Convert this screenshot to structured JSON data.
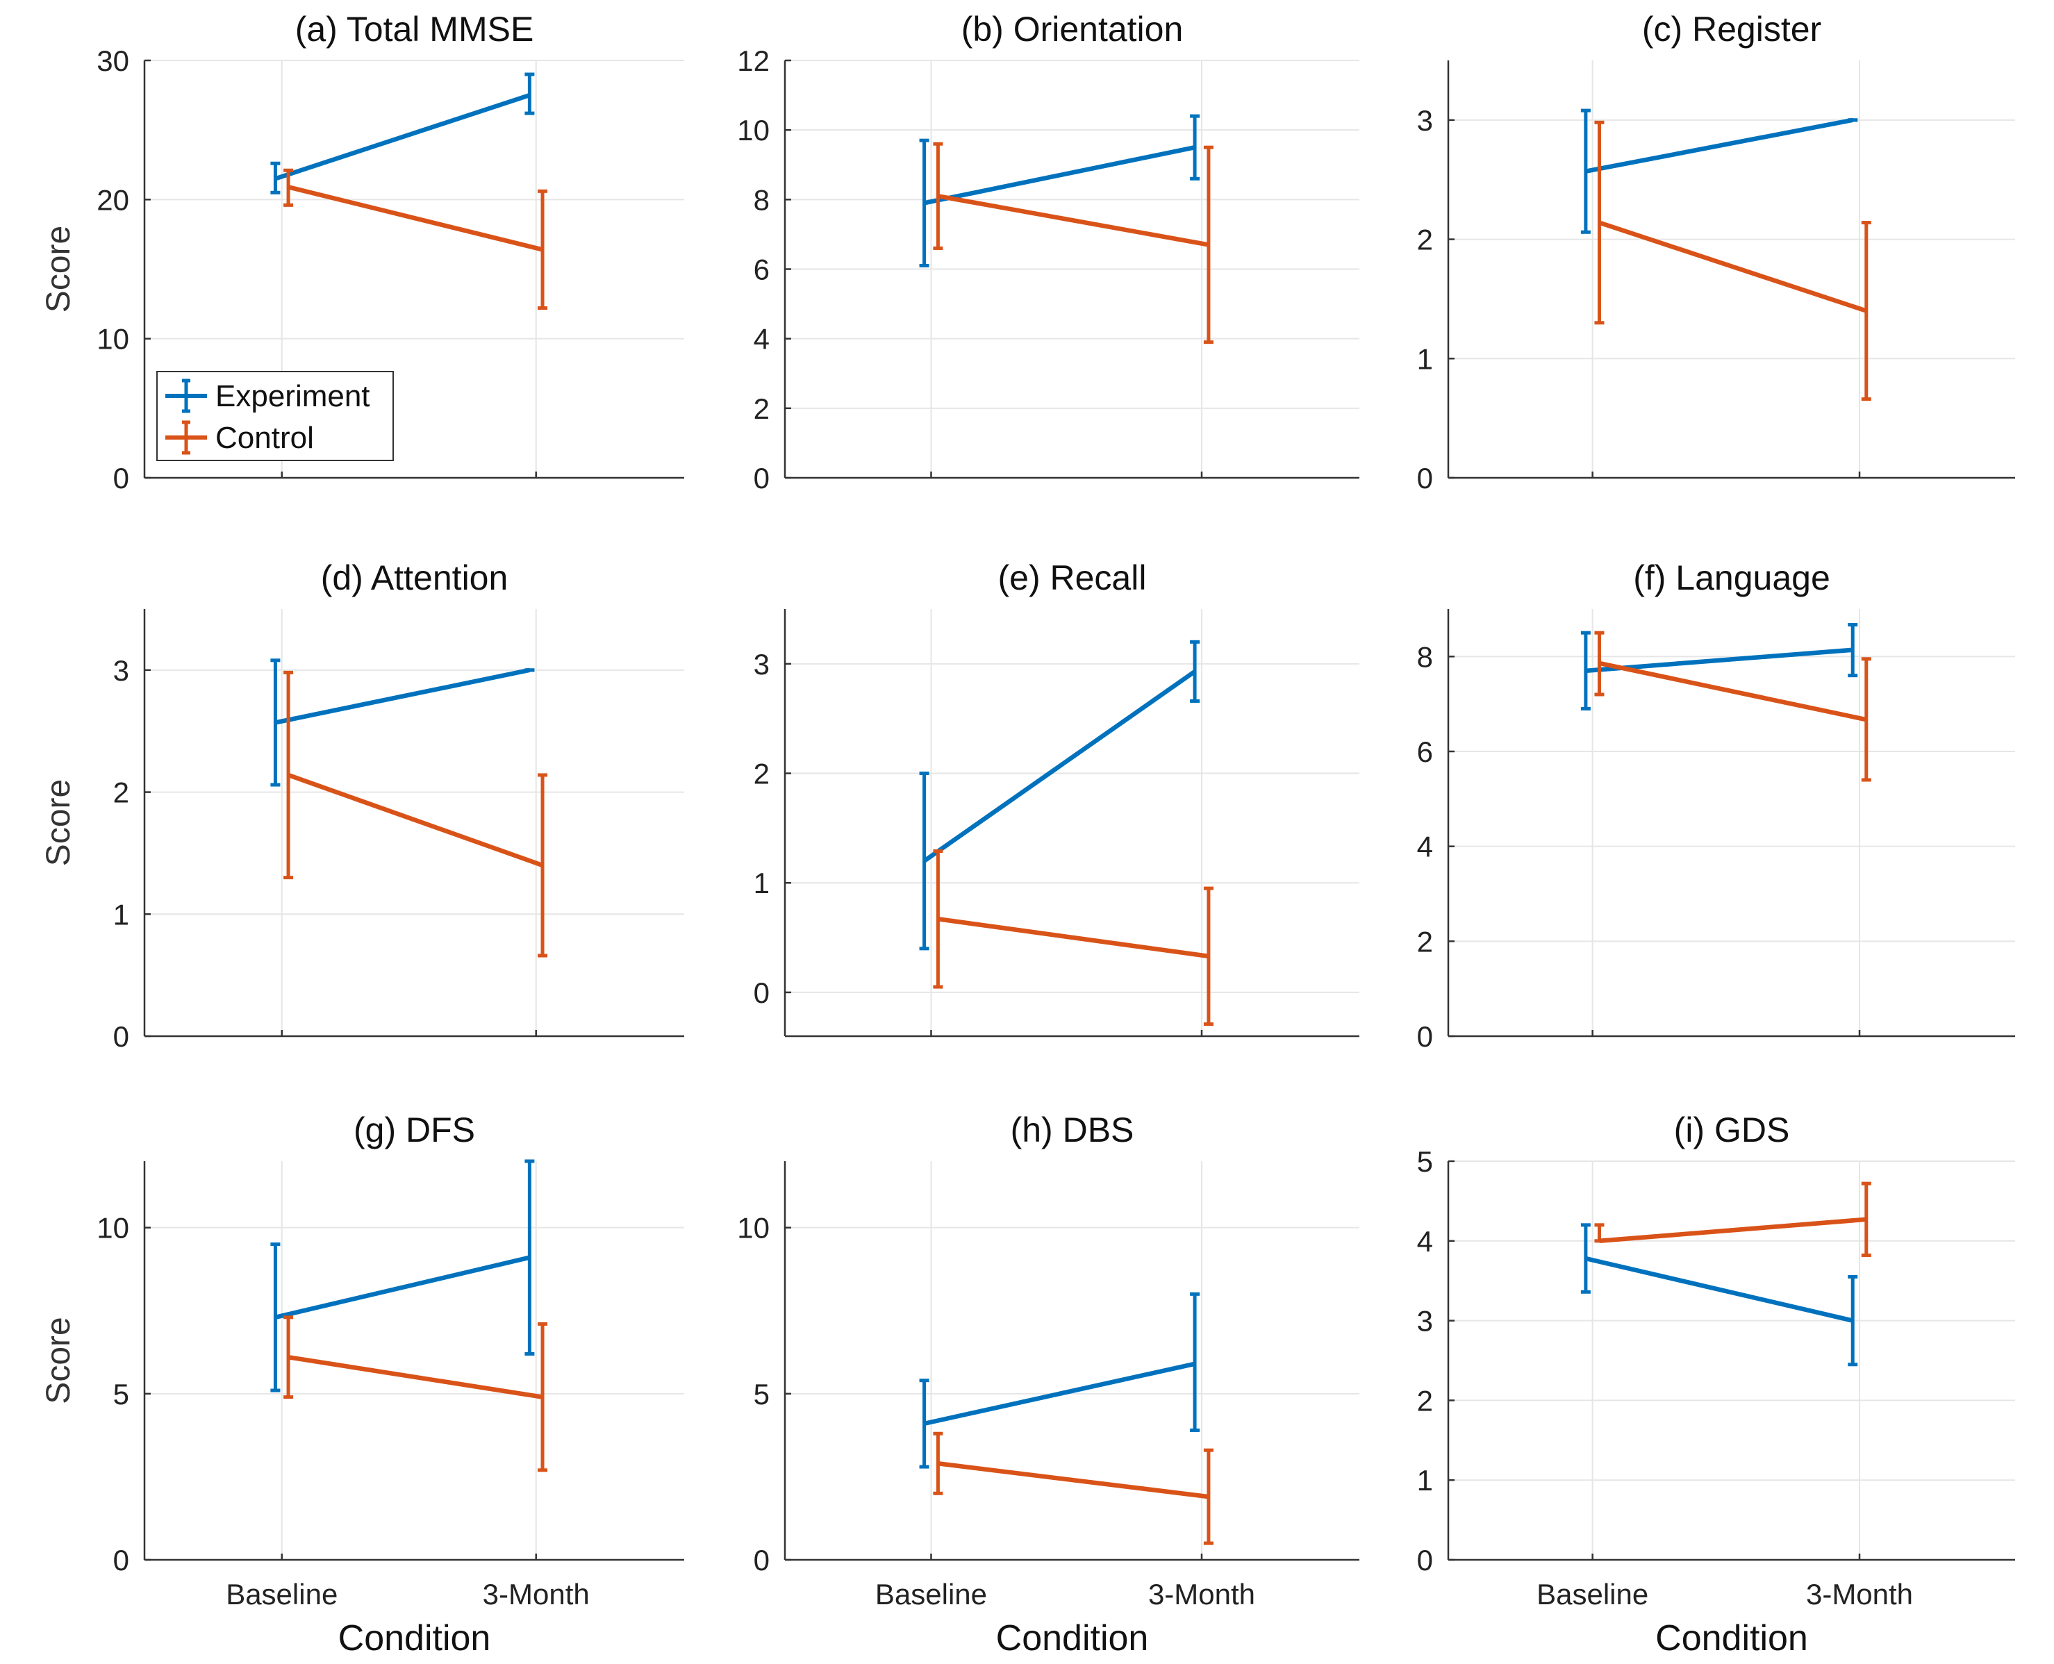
{
  "colors": {
    "Experiment": "#0072BD",
    "Control": "#D95319"
  },
  "legend": {
    "entries": [
      "Experiment",
      "Control"
    ]
  },
  "chart_data": [
    {
      "type": "line",
      "title": "(a) Total MMSE",
      "ylabel": "Score",
      "xlabel": "",
      "categories": [
        "Baseline",
        "3-Month"
      ],
      "ylim": [
        0,
        30
      ],
      "yticks": [
        0,
        10,
        20,
        30
      ],
      "show_xticklabels": false,
      "legend": "top-left",
      "series": [
        {
          "name": "Experiment",
          "values": [
            21.5,
            27.5
          ],
          "lower": [
            20.5,
            26.2
          ],
          "upper": [
            22.6,
            29.0
          ]
        },
        {
          "name": "Control",
          "values": [
            20.9,
            16.4
          ],
          "lower": [
            19.6,
            12.2
          ],
          "upper": [
            22.1,
            20.6
          ]
        }
      ]
    },
    {
      "type": "line",
      "title": "(b) Orientation",
      "ylabel": "",
      "xlabel": "",
      "categories": [
        "Baseline",
        "3-Month"
      ],
      "ylim": [
        0,
        12
      ],
      "yticks": [
        0,
        2,
        4,
        6,
        8,
        10,
        12
      ],
      "show_xticklabels": false,
      "series": [
        {
          "name": "Experiment",
          "values": [
            7.9,
            9.5
          ],
          "lower": [
            6.1,
            8.6
          ],
          "upper": [
            9.7,
            10.4
          ]
        },
        {
          "name": "Control",
          "values": [
            8.1,
            6.7
          ],
          "lower": [
            6.6,
            3.9
          ],
          "upper": [
            9.6,
            9.5
          ]
        }
      ]
    },
    {
      "type": "line",
      "title": "(c) Register",
      "ylabel": "",
      "xlabel": "",
      "categories": [
        "Baseline",
        "3-Month"
      ],
      "ylim": [
        0,
        3.5
      ],
      "yticks": [
        0,
        1,
        2,
        3
      ],
      "show_xticklabels": false,
      "series": [
        {
          "name": "Experiment",
          "values": [
            2.57,
            3.0
          ],
          "lower": [
            2.06,
            3.0
          ],
          "upper": [
            3.08,
            3.0
          ]
        },
        {
          "name": "Control",
          "values": [
            2.14,
            1.4
          ],
          "lower": [
            1.3,
            0.66
          ],
          "upper": [
            2.98,
            2.14
          ]
        }
      ]
    },
    {
      "type": "line",
      "title": "(d) Attention",
      "ylabel": "Score",
      "xlabel": "",
      "categories": [
        "Baseline",
        "3-Month"
      ],
      "ylim": [
        0,
        3.5
      ],
      "yticks": [
        0,
        1,
        2,
        3
      ],
      "show_xticklabels": false,
      "series": [
        {
          "name": "Experiment",
          "values": [
            2.57,
            3.0
          ],
          "lower": [
            2.06,
            3.0
          ],
          "upper": [
            3.08,
            3.0
          ]
        },
        {
          "name": "Control",
          "values": [
            2.14,
            1.4
          ],
          "lower": [
            1.3,
            0.66
          ],
          "upper": [
            2.98,
            2.14
          ]
        }
      ]
    },
    {
      "type": "line",
      "title": "(e) Recall",
      "ylabel": "",
      "xlabel": "",
      "categories": [
        "Baseline",
        "3-Month"
      ],
      "ylim": [
        -0.4,
        3.5
      ],
      "yticks": [
        0,
        1,
        2,
        3
      ],
      "show_xticklabels": false,
      "series": [
        {
          "name": "Experiment",
          "values": [
            1.2,
            2.93
          ],
          "lower": [
            0.4,
            2.66
          ],
          "upper": [
            2.0,
            3.2
          ]
        },
        {
          "name": "Control",
          "values": [
            0.67,
            0.33
          ],
          "lower": [
            0.05,
            -0.29
          ],
          "upper": [
            1.29,
            0.95
          ]
        }
      ]
    },
    {
      "type": "line",
      "title": "(f) Language",
      "ylabel": "",
      "xlabel": "",
      "categories": [
        "Baseline",
        "3-Month"
      ],
      "ylim": [
        0,
        9
      ],
      "yticks": [
        0,
        2,
        4,
        6,
        8
      ],
      "show_xticklabels": false,
      "series": [
        {
          "name": "Experiment",
          "values": [
            7.7,
            8.14
          ],
          "lower": [
            6.9,
            7.6
          ],
          "upper": [
            8.5,
            8.67
          ]
        },
        {
          "name": "Control",
          "values": [
            7.86,
            6.67
          ],
          "lower": [
            7.2,
            5.4
          ],
          "upper": [
            8.5,
            7.95
          ]
        }
      ]
    },
    {
      "type": "line",
      "title": "(g) DFS",
      "ylabel": "Score",
      "xlabel": "Condition",
      "categories": [
        "Baseline",
        "3-Month"
      ],
      "ylim": [
        0,
        12
      ],
      "yticks": [
        0,
        5,
        10
      ],
      "show_xticklabels": true,
      "series": [
        {
          "name": "Experiment",
          "values": [
            7.3,
            9.1
          ],
          "lower": [
            5.1,
            6.2
          ],
          "upper": [
            9.5,
            12.0
          ]
        },
        {
          "name": "Control",
          "values": [
            6.1,
            4.9
          ],
          "lower": [
            4.9,
            2.7
          ],
          "upper": [
            7.3,
            7.1
          ]
        }
      ]
    },
    {
      "type": "line",
      "title": "(h) DBS",
      "ylabel": "",
      "xlabel": "Condition",
      "categories": [
        "Baseline",
        "3-Month"
      ],
      "ylim": [
        0,
        12
      ],
      "yticks": [
        0,
        5,
        10
      ],
      "show_xticklabels": true,
      "series": [
        {
          "name": "Experiment",
          "values": [
            4.1,
            5.9
          ],
          "lower": [
            2.8,
            3.9
          ],
          "upper": [
            5.4,
            8.0
          ]
        },
        {
          "name": "Control",
          "values": [
            2.9,
            1.9
          ],
          "lower": [
            2.0,
            0.5
          ],
          "upper": [
            3.8,
            3.3
          ]
        }
      ]
    },
    {
      "type": "line",
      "title": "(i) GDS",
      "ylabel": "",
      "xlabel": "Condition",
      "categories": [
        "Baseline",
        "3-Month"
      ],
      "ylim": [
        0,
        5
      ],
      "yticks": [
        0,
        1,
        2,
        3,
        4,
        5
      ],
      "show_xticklabels": true,
      "series": [
        {
          "name": "Experiment",
          "values": [
            3.78,
            3.0
          ],
          "lower": [
            3.36,
            2.45
          ],
          "upper": [
            4.2,
            3.55
          ]
        },
        {
          "name": "Control",
          "values": [
            4.0,
            4.27
          ],
          "lower": [
            4.0,
            3.82
          ],
          "upper": [
            4.2,
            4.72
          ]
        }
      ]
    }
  ]
}
